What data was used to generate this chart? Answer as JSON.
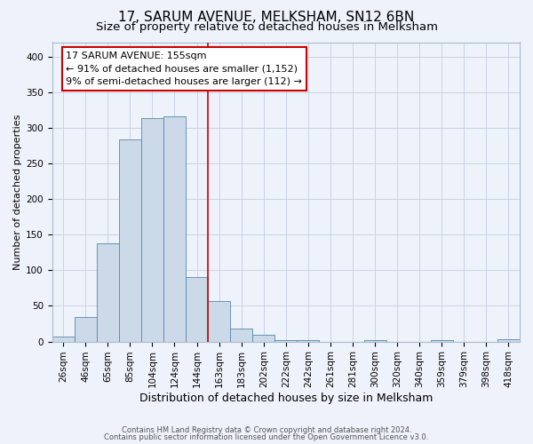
{
  "title": "17, SARUM AVENUE, MELKSHAM, SN12 6BN",
  "subtitle": "Size of property relative to detached houses in Melksham",
  "xlabel": "Distribution of detached houses by size in Melksham",
  "ylabel": "Number of detached properties",
  "bin_labels": [
    "26sqm",
    "46sqm",
    "65sqm",
    "85sqm",
    "104sqm",
    "124sqm",
    "144sqm",
    "163sqm",
    "183sqm",
    "202sqm",
    "222sqm",
    "242sqm",
    "261sqm",
    "281sqm",
    "300sqm",
    "320sqm",
    "340sqm",
    "359sqm",
    "379sqm",
    "398sqm",
    "418sqm"
  ],
  "bar_heights": [
    7,
    34,
    138,
    284,
    314,
    316,
    90,
    57,
    18,
    10,
    2,
    2,
    0,
    0,
    2,
    0,
    0,
    2,
    0,
    0,
    3
  ],
  "bar_color": "#ccd9e8",
  "bar_edge_color": "#5588aa",
  "vline_x_index": 6.5,
  "vline_color": "#cc0000",
  "annotation_title": "17 SARUM AVENUE: 155sqm",
  "annotation_line1": "← 91% of detached houses are smaller (1,152)",
  "annotation_line2": "9% of semi-detached houses are larger (112) →",
  "annotation_box_color": "#ffffff",
  "annotation_border_color": "#cc0000",
  "ylim": [
    0,
    420
  ],
  "yticks": [
    0,
    50,
    100,
    150,
    200,
    250,
    300,
    350,
    400
  ],
  "footer1": "Contains HM Land Registry data © Crown copyright and database right 2024.",
  "footer2": "Contains public sector information licensed under the Open Government Licence v3.0.",
  "background_color": "#eef2fa",
  "plot_background": "#eef2fa",
  "grid_color": "#c5cde0",
  "title_fontsize": 11,
  "subtitle_fontsize": 9.5,
  "ylabel_fontsize": 8,
  "xlabel_fontsize": 9,
  "tick_fontsize": 7.5,
  "annotation_fontsize": 8,
  "footer_fontsize": 6
}
